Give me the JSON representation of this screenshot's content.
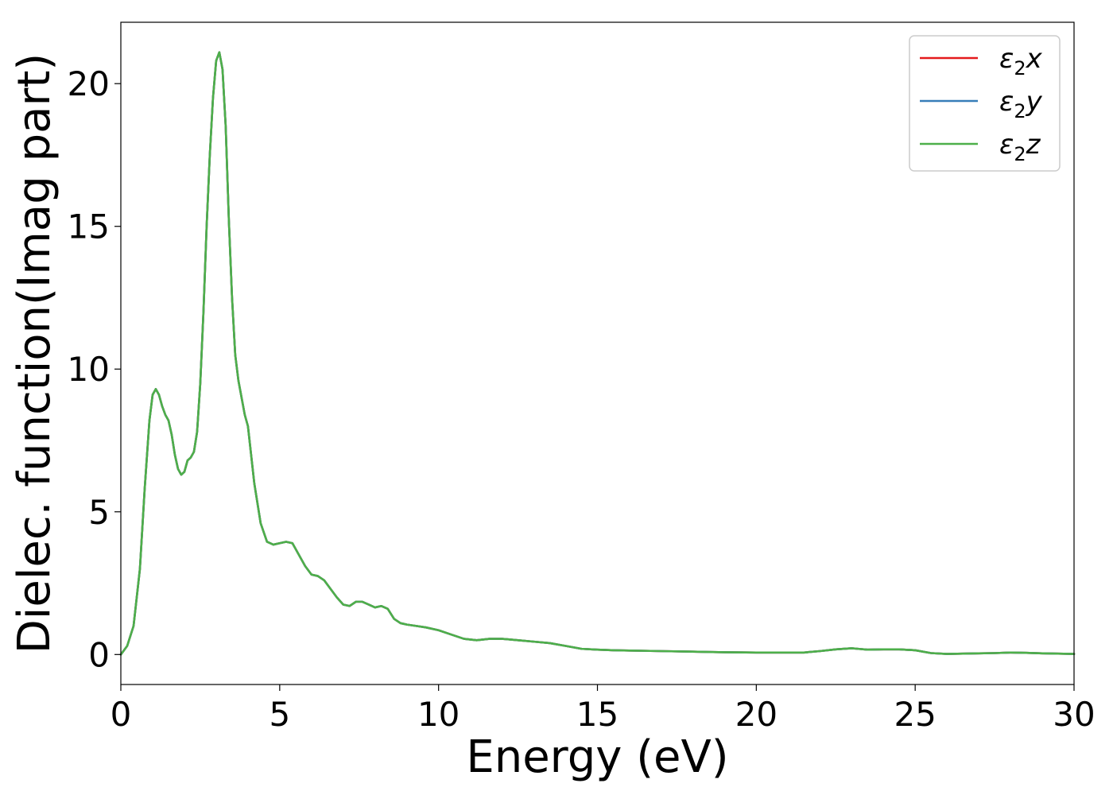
{
  "chart_data": {
    "type": "line",
    "xlabel": "Energy (eV)",
    "ylabel": "Dielec. function(Imag part)",
    "xlim": [
      0,
      30
    ],
    "ylim": [
      -1.05,
      22.15
    ],
    "xticks": [
      0,
      5,
      10,
      15,
      20,
      25,
      30
    ],
    "yticks": [
      0,
      5,
      10,
      15,
      20
    ],
    "xtick_labels": [
      "0",
      "5",
      "10",
      "15",
      "20",
      "25",
      "30"
    ],
    "ytick_labels": [
      "0",
      "5",
      "10",
      "15",
      "20"
    ],
    "grid": false,
    "legend_position": "top-right",
    "legend": [
      {
        "base": "ε",
        "sub": "2",
        "var": "x",
        "color": "#e41a1c"
      },
      {
        "base": "ε",
        "sub": "2",
        "var": "y",
        "color": "#377eb8"
      },
      {
        "base": "ε",
        "sub": "2",
        "var": "z",
        "color": "#4daf4a"
      }
    ],
    "x": [
      0,
      0.2,
      0.4,
      0.6,
      0.75,
      0.9,
      1.0,
      1.1,
      1.2,
      1.3,
      1.4,
      1.5,
      1.6,
      1.7,
      1.8,
      1.9,
      2.0,
      2.1,
      2.2,
      2.3,
      2.4,
      2.5,
      2.6,
      2.7,
      2.8,
      2.9,
      3.0,
      3.1,
      3.2,
      3.3,
      3.4,
      3.5,
      3.6,
      3.7,
      3.8,
      3.9,
      4.0,
      4.2,
      4.4,
      4.6,
      4.8,
      5.0,
      5.2,
      5.4,
      5.6,
      5.8,
      6.0,
      6.2,
      6.4,
      6.6,
      6.8,
      7.0,
      7.2,
      7.4,
      7.6,
      7.8,
      8.0,
      8.2,
      8.4,
      8.6,
      8.8,
      9.0,
      9.3,
      9.6,
      10.0,
      10.4,
      10.8,
      11.2,
      11.6,
      12.0,
      12.5,
      13.0,
      13.5,
      14.0,
      14.5,
      15.0,
      15.5,
      16.0,
      16.5,
      17.0,
      18.0,
      19.0,
      20.0,
      21.0,
      21.5,
      22.0,
      22.5,
      23.0,
      23.2,
      23.5,
      24.0,
      24.5,
      25.0,
      25.5,
      26.0,
      26.5,
      27.0,
      27.5,
      28.0,
      28.5,
      29.0,
      29.5,
      30.0
    ],
    "series": [
      {
        "name": "ε2x",
        "color": "#e41a1c",
        "values": [
          0.0,
          0.3,
          1.0,
          3.0,
          5.8,
          8.2,
          9.1,
          9.3,
          9.1,
          8.7,
          8.4,
          8.2,
          7.7,
          7.0,
          6.5,
          6.3,
          6.4,
          6.8,
          6.9,
          7.1,
          7.8,
          9.5,
          12.0,
          15.0,
          17.5,
          19.5,
          20.8,
          21.1,
          20.5,
          18.5,
          15.2,
          12.5,
          10.5,
          9.6,
          9.0,
          8.4,
          8.0,
          6.0,
          4.6,
          3.95,
          3.85,
          3.9,
          3.95,
          3.9,
          3.5,
          3.1,
          2.8,
          2.75,
          2.6,
          2.3,
          2.0,
          1.75,
          1.7,
          1.85,
          1.85,
          1.75,
          1.65,
          1.7,
          1.6,
          1.25,
          1.1,
          1.05,
          1.0,
          0.95,
          0.85,
          0.7,
          0.55,
          0.5,
          0.55,
          0.55,
          0.5,
          0.45,
          0.4,
          0.3,
          0.2,
          0.17,
          0.15,
          0.14,
          0.13,
          0.12,
          0.1,
          0.08,
          0.07,
          0.07,
          0.07,
          0.12,
          0.18,
          0.22,
          0.2,
          0.17,
          0.18,
          0.18,
          0.15,
          0.05,
          0.02,
          0.03,
          0.04,
          0.05,
          0.07,
          0.06,
          0.04,
          0.03,
          0.02
        ]
      },
      {
        "name": "ε2y",
        "color": "#377eb8",
        "values": [
          0.0,
          0.3,
          1.0,
          3.0,
          5.8,
          8.2,
          9.1,
          9.3,
          9.1,
          8.7,
          8.4,
          8.2,
          7.7,
          7.0,
          6.5,
          6.3,
          6.4,
          6.8,
          6.9,
          7.1,
          7.8,
          9.5,
          12.0,
          15.0,
          17.5,
          19.5,
          20.8,
          21.1,
          20.5,
          18.5,
          15.2,
          12.5,
          10.5,
          9.6,
          9.0,
          8.4,
          8.0,
          6.0,
          4.6,
          3.95,
          3.85,
          3.9,
          3.95,
          3.9,
          3.5,
          3.1,
          2.8,
          2.75,
          2.6,
          2.3,
          2.0,
          1.75,
          1.7,
          1.85,
          1.85,
          1.75,
          1.65,
          1.7,
          1.6,
          1.25,
          1.1,
          1.05,
          1.0,
          0.95,
          0.85,
          0.7,
          0.55,
          0.5,
          0.55,
          0.55,
          0.5,
          0.45,
          0.4,
          0.3,
          0.2,
          0.17,
          0.15,
          0.14,
          0.13,
          0.12,
          0.1,
          0.08,
          0.07,
          0.07,
          0.07,
          0.12,
          0.18,
          0.22,
          0.2,
          0.17,
          0.18,
          0.18,
          0.15,
          0.05,
          0.02,
          0.03,
          0.04,
          0.05,
          0.07,
          0.06,
          0.04,
          0.03,
          0.02
        ]
      },
      {
        "name": "ε2z",
        "color": "#4daf4a",
        "values": [
          0.0,
          0.3,
          1.0,
          3.0,
          5.8,
          8.2,
          9.1,
          9.3,
          9.1,
          8.7,
          8.4,
          8.2,
          7.7,
          7.0,
          6.5,
          6.3,
          6.4,
          6.8,
          6.9,
          7.1,
          7.8,
          9.5,
          12.0,
          15.0,
          17.5,
          19.5,
          20.8,
          21.1,
          20.5,
          18.5,
          15.2,
          12.5,
          10.5,
          9.6,
          9.0,
          8.4,
          8.0,
          6.0,
          4.6,
          3.95,
          3.85,
          3.9,
          3.95,
          3.9,
          3.5,
          3.1,
          2.8,
          2.75,
          2.6,
          2.3,
          2.0,
          1.75,
          1.7,
          1.85,
          1.85,
          1.75,
          1.65,
          1.7,
          1.6,
          1.25,
          1.1,
          1.05,
          1.0,
          0.95,
          0.85,
          0.7,
          0.55,
          0.5,
          0.55,
          0.55,
          0.5,
          0.45,
          0.4,
          0.3,
          0.2,
          0.17,
          0.15,
          0.14,
          0.13,
          0.12,
          0.1,
          0.08,
          0.07,
          0.07,
          0.07,
          0.12,
          0.18,
          0.22,
          0.2,
          0.17,
          0.18,
          0.18,
          0.15,
          0.05,
          0.02,
          0.03,
          0.04,
          0.05,
          0.07,
          0.06,
          0.04,
          0.03,
          0.02
        ]
      }
    ]
  }
}
